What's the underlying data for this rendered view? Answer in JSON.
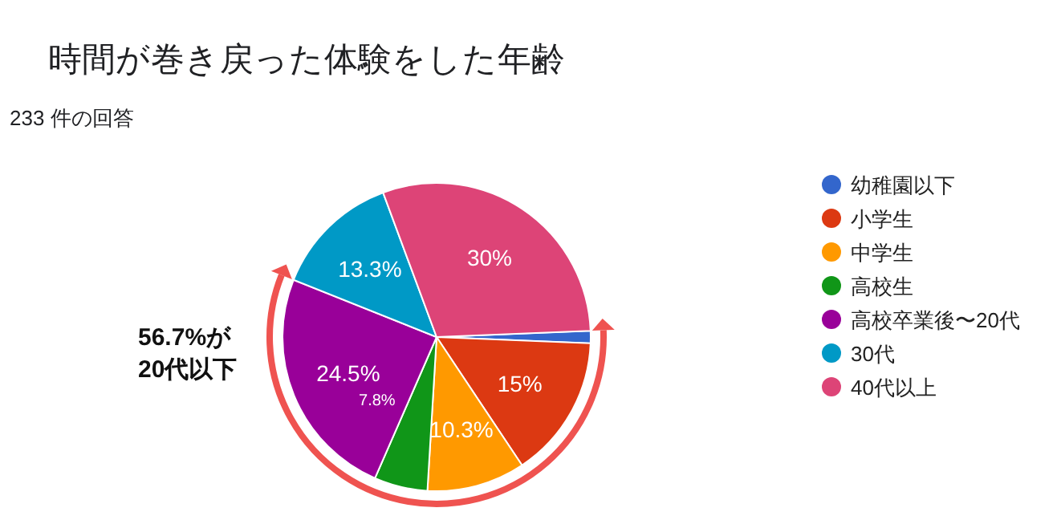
{
  "chart_data": {
    "type": "pie",
    "title": "時間が巻き戻った体験をした年齢",
    "subtitle": "233 件の回答",
    "categories": [
      "幼稚園以下",
      "小学生",
      "中学生",
      "高校生",
      "高校卒業後〜20代",
      "30代",
      "40代以上"
    ],
    "values": [
      1.3,
      15,
      10.3,
      5.6,
      24.5,
      13.3,
      30
    ],
    "colors": [
      "#3366cc",
      "#dc3912",
      "#ff9900",
      "#109618",
      "#990099",
      "#0099c6",
      "#dd4477"
    ],
    "value_labels": [
      null,
      "15%",
      "10.3%",
      null,
      "24.5%",
      "13.3%",
      "30%"
    ],
    "legend": "right",
    "annotations": [
      "56.7%が\n20代以下",
      "7.8%"
    ]
  }
}
